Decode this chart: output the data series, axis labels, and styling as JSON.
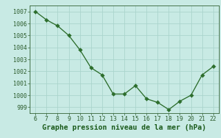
{
  "x": [
    6,
    7,
    8,
    9,
    10,
    11,
    12,
    13,
    14,
    15,
    16,
    17,
    18,
    19,
    20,
    21,
    22
  ],
  "y": [
    1007.0,
    1006.3,
    1005.8,
    1005.0,
    1003.8,
    1002.3,
    1001.7,
    1000.1,
    1000.1,
    1000.8,
    999.7,
    999.4,
    998.8,
    999.5,
    1000.0,
    1001.7,
    1002.4
  ],
  "line_color": "#2d6e2d",
  "marker_color": "#2d6e2d",
  "bg_color": "#c8eae4",
  "grid_color": "#aad4cc",
  "xlabel": "Graphe pression niveau de la mer (hPa)",
  "xlabel_color": "#1a5a1a",
  "tick_color": "#2a5a2a",
  "ylim": [
    998.5,
    1007.5
  ],
  "xlim": [
    5.5,
    22.5
  ],
  "yticks": [
    999,
    1000,
    1001,
    1002,
    1003,
    1004,
    1005,
    1006,
    1007
  ],
  "xticks": [
    6,
    7,
    8,
    9,
    10,
    11,
    12,
    13,
    14,
    15,
    16,
    17,
    18,
    19,
    20,
    21,
    22
  ],
  "tick_fontsize": 6.0,
  "xlabel_fontsize": 7.5,
  "marker_size": 3.0,
  "line_width": 1.0
}
